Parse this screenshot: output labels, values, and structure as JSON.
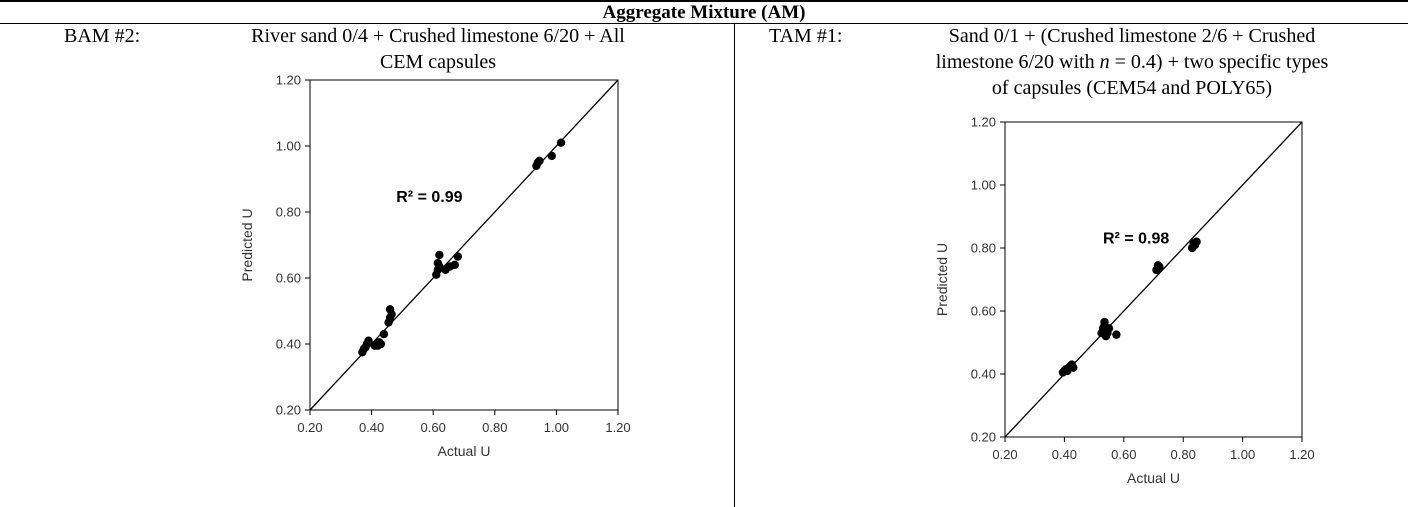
{
  "header": "Aggregate Mixture (AM)",
  "left_panel": {
    "tag": "BAM #2:",
    "description_line1": "River sand 0/4 + Crushed limestone 6/20 + All",
    "description_line2": "CEM capsules"
  },
  "right_panel": {
    "tag": "TAM #1:",
    "description_line1": "Sand 0/1 + (Crushed limestone 2/6 + Crushed",
    "description_line2_pre": "limestone 6/20 with ",
    "description_line2_var": "n",
    "description_line2_post": " = 0.4) + two specific types",
    "description_line3": "of capsules (CEM54 and POLY65)"
  },
  "chart_data": [
    {
      "type": "scatter",
      "title": "",
      "xlabel": "Actual U",
      "ylabel": "Predicted U",
      "xlim": [
        0.2,
        1.2
      ],
      "ylim": [
        0.2,
        1.2
      ],
      "xticks": [
        "0.20",
        "0.40",
        "0.60",
        "0.80",
        "1.00",
        "1.20"
      ],
      "yticks": [
        "0.20",
        "0.40",
        "0.60",
        "0.80",
        "1.00",
        "1.20"
      ],
      "annotation": "R² = 0.99",
      "annotation_pos": [
        0.48,
        0.83
      ],
      "reference_line": "y = x",
      "grid": false,
      "points": [
        [
          0.37,
          0.375
        ],
        [
          0.375,
          0.385
        ],
        [
          0.38,
          0.39
        ],
        [
          0.385,
          0.4
        ],
        [
          0.39,
          0.41
        ],
        [
          0.41,
          0.395
        ],
        [
          0.415,
          0.4
        ],
        [
          0.42,
          0.395
        ],
        [
          0.425,
          0.405
        ],
        [
          0.43,
          0.4
        ],
        [
          0.44,
          0.43
        ],
        [
          0.455,
          0.465
        ],
        [
          0.46,
          0.48
        ],
        [
          0.46,
          0.505
        ],
        [
          0.465,
          0.49
        ],
        [
          0.61,
          0.61
        ],
        [
          0.615,
          0.625
        ],
        [
          0.62,
          0.635
        ],
        [
          0.615,
          0.645
        ],
        [
          0.62,
          0.67
        ],
        [
          0.64,
          0.625
        ],
        [
          0.655,
          0.635
        ],
        [
          0.67,
          0.64
        ],
        [
          0.68,
          0.665
        ],
        [
          0.935,
          0.94
        ],
        [
          0.94,
          0.95
        ],
        [
          0.945,
          0.955
        ],
        [
          0.985,
          0.97
        ],
        [
          1.015,
          1.01
        ]
      ]
    },
    {
      "type": "scatter",
      "title": "",
      "xlabel": "Actual U",
      "ylabel": "Predicted U",
      "xlim": [
        0.2,
        1.2
      ],
      "ylim": [
        0.2,
        1.2
      ],
      "xticks": [
        "0.20",
        "0.40",
        "0.60",
        "0.80",
        "1.00",
        "1.20"
      ],
      "yticks": [
        "0.20",
        "0.40",
        "0.60",
        "0.80",
        "1.00",
        "1.20"
      ],
      "annotation": "R² = 0.98",
      "annotation_pos": [
        0.53,
        0.815
      ],
      "reference_line": "y = x",
      "grid": false,
      "points": [
        [
          0.395,
          0.405
        ],
        [
          0.4,
          0.41
        ],
        [
          0.405,
          0.415
        ],
        [
          0.41,
          0.41
        ],
        [
          0.415,
          0.42
        ],
        [
          0.42,
          0.425
        ],
        [
          0.425,
          0.43
        ],
        [
          0.43,
          0.42
        ],
        [
          0.525,
          0.53
        ],
        [
          0.53,
          0.545
        ],
        [
          0.535,
          0.555
        ],
        [
          0.535,
          0.565
        ],
        [
          0.54,
          0.52
        ],
        [
          0.545,
          0.53
        ],
        [
          0.55,
          0.545
        ],
        [
          0.575,
          0.525
        ],
        [
          0.71,
          0.73
        ],
        [
          0.715,
          0.745
        ],
        [
          0.72,
          0.74
        ],
        [
          0.83,
          0.8
        ],
        [
          0.835,
          0.815
        ],
        [
          0.845,
          0.82
        ],
        [
          0.84,
          0.81
        ]
      ]
    }
  ]
}
